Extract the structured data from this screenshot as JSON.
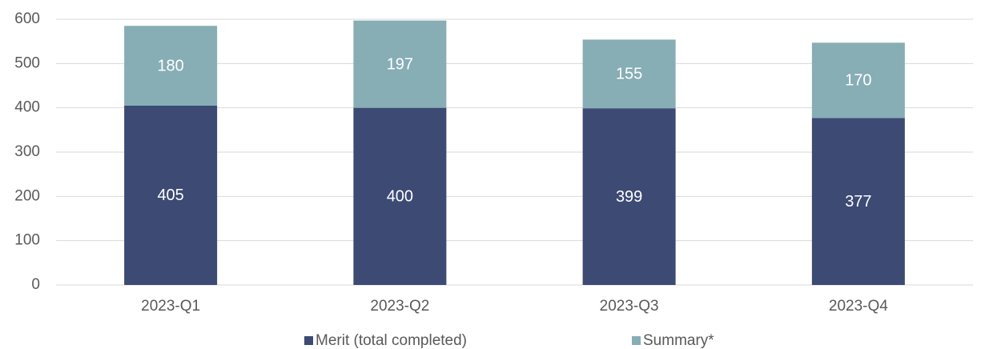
{
  "chart_data": {
    "type": "stacked_bar",
    "categories": [
      "2023-Q1",
      "2023-Q2",
      "2023-Q3",
      "2023-Q4"
    ],
    "series": [
      {
        "name": "Merit (total completed)",
        "color": "#3c4a74",
        "values": [
          405,
          400,
          399,
          377
        ]
      },
      {
        "name": "Summary*",
        "color": "#87adb5",
        "values": [
          180,
          197,
          155,
          170
        ]
      }
    ],
    "ylim": [
      0,
      600
    ],
    "yticks": [
      0,
      100,
      200,
      300,
      400,
      500,
      600
    ],
    "grid": true,
    "legend": "bottom"
  }
}
